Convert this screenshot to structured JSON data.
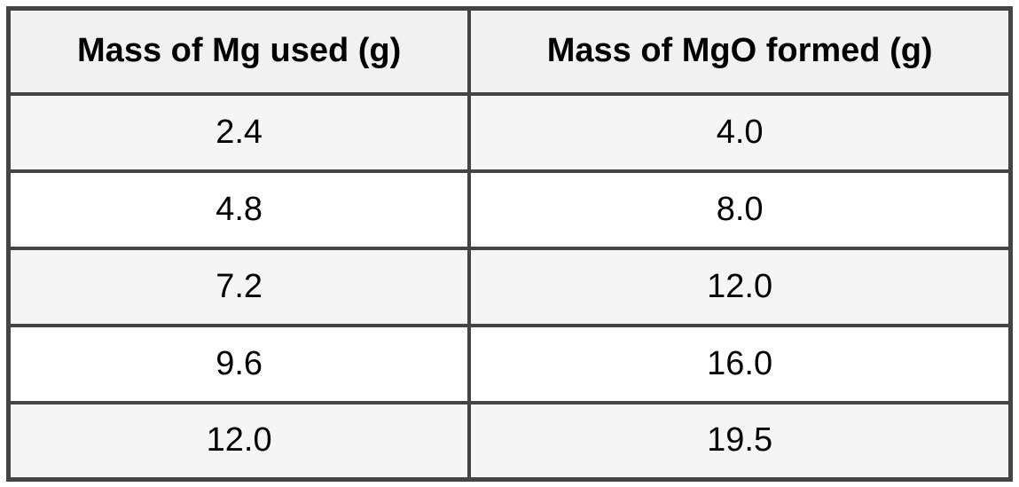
{
  "table": {
    "headers": [
      "Mass of Mg used (g)",
      "Mass of MgO formed (g)"
    ],
    "rows": [
      [
        "2.4",
        "4.0"
      ],
      [
        "4.8",
        "8.0"
      ],
      [
        "7.2",
        "12.0"
      ],
      [
        "9.6",
        "16.0"
      ],
      [
        "12.0",
        "19.5"
      ]
    ]
  },
  "chart_data": {
    "type": "table",
    "title": "",
    "columns": [
      "Mass of Mg used (g)",
      "Mass of MgO formed (g)"
    ],
    "rows": [
      [
        2.4,
        4.0
      ],
      [
        4.8,
        8.0
      ],
      [
        7.2,
        12.0
      ],
      [
        9.6,
        16.0
      ],
      [
        12.0,
        19.5
      ]
    ]
  },
  "colors": {
    "border": "#444444",
    "header_bg": "#f1f1f1",
    "stripe_bg": "#f5f5f5",
    "row_bg": "#ffffff",
    "text": "#000000",
    "page_bg": "#ffffff"
  }
}
